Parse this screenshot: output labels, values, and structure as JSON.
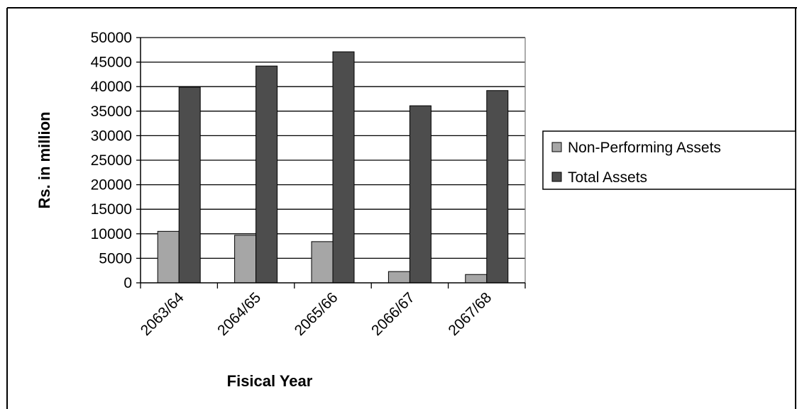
{
  "chart_data": {
    "type": "bar",
    "title": "",
    "xlabel": "Fisical Year",
    "ylabel": "Rs. in million",
    "categories": [
      "2063/64",
      "2064/65",
      "2065/66",
      "2066/67",
      "2067/68"
    ],
    "series": [
      {
        "name": "Non-Performing Assets",
        "values": [
          10500,
          9700,
          8400,
          2300,
          1700
        ],
        "color": "#a6a6a6"
      },
      {
        "name": "Total Assets",
        "values": [
          39900,
          44200,
          47100,
          36100,
          39200
        ],
        "color": "#4d4d4d"
      }
    ],
    "ylim": [
      0,
      50000
    ],
    "yticks": [
      "0",
      "5000",
      "10000",
      "15000",
      "20000",
      "25000",
      "30000",
      "35000",
      "40000",
      "45000",
      "50000"
    ],
    "grid": true,
    "legend_position": "right"
  }
}
